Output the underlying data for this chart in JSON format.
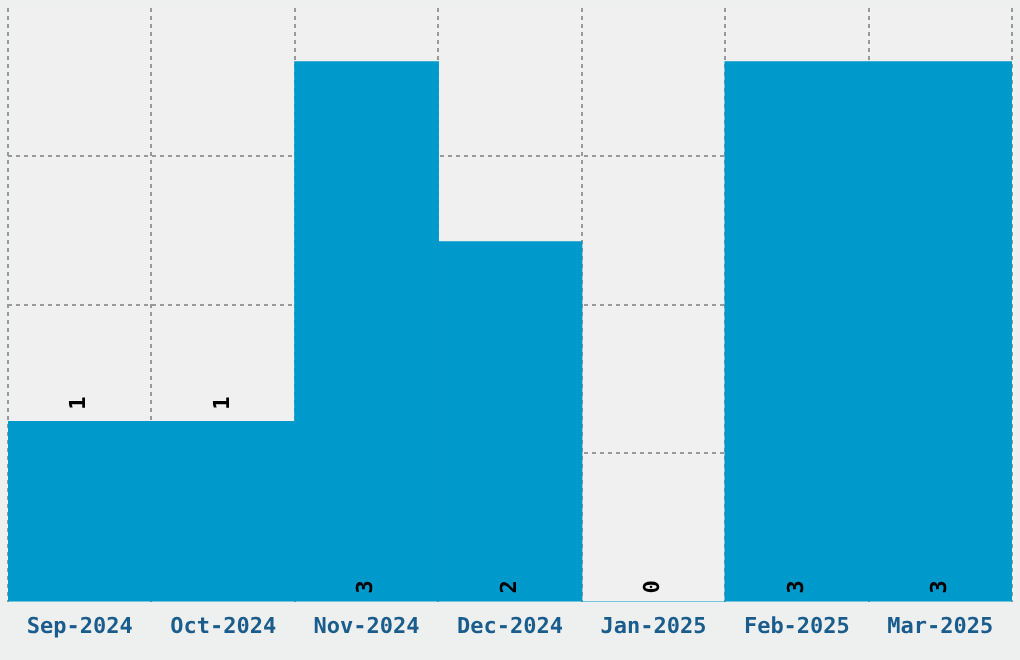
{
  "chart_data": {
    "type": "bar",
    "categories": [
      "Sep-2024",
      "Oct-2024",
      "Nov-2024",
      "Dec-2024",
      "Jan-2025",
      "Feb-2025",
      "Mar-2025"
    ],
    "values": [
      1,
      1,
      3,
      2,
      0,
      3,
      3
    ],
    "color": "#0099cc",
    "data_labels": true,
    "grid": true,
    "tick_labels": "x",
    "ylim": [
      0,
      3.3
    ],
    "yticks": [
      {
        "value": 0.825,
        "label": null
      },
      {
        "value": 1.65,
        "label": null
      },
      {
        "value": 2.475,
        "label": null
      }
    ]
  }
}
